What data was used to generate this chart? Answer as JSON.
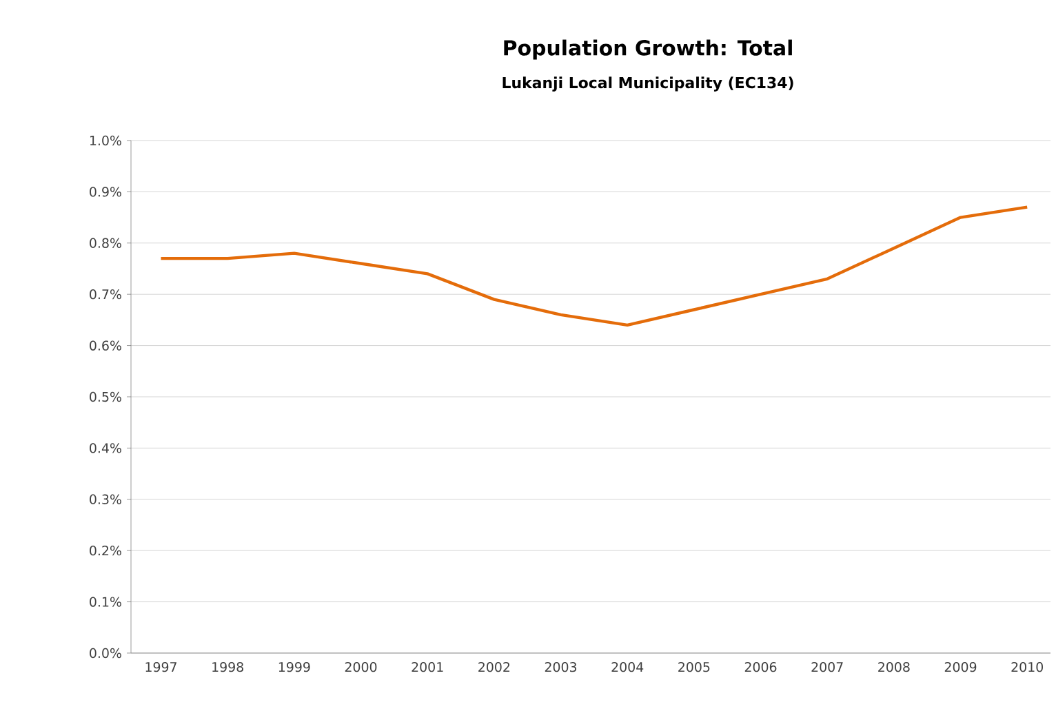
{
  "chart_data": {
    "type": "line",
    "title": "Population Growth: Total",
    "subtitle": "Lukanji Local Municipality (EC134)",
    "categories": [
      "1997",
      "1998",
      "1999",
      "2000",
      "2001",
      "2002",
      "2003",
      "2004",
      "2005",
      "2006",
      "2007",
      "2008",
      "2009",
      "2010"
    ],
    "series": [
      {
        "color": "#e46c0a",
        "values": [
          0.77,
          0.77,
          0.78,
          0.76,
          0.74,
          0.69,
          0.66,
          0.64,
          0.67,
          0.7,
          0.73,
          0.79,
          0.85,
          0.87
        ]
      }
    ],
    "ylim": [
      0,
      1.0
    ],
    "yticks": [
      {
        "value": 0,
        "label": "0.0%"
      },
      {
        "value": 0.1,
        "label": "0.1%"
      },
      {
        "value": 0.2,
        "label": "0.2%"
      },
      {
        "value": 0.3,
        "label": "0.3%"
      },
      {
        "value": 0.4,
        "label": "0.4%"
      },
      {
        "value": 0.5,
        "label": "0.5%"
      },
      {
        "value": 0.6,
        "label": "0.6%"
      },
      {
        "value": 0.7,
        "label": "0.7%"
      },
      {
        "value": 0.8,
        "label": "0.8%"
      },
      {
        "value": 0.9,
        "label": "0.9%"
      },
      {
        "value": 1.0,
        "label": "1.0%"
      }
    ],
    "grid": "y",
    "legend": false,
    "marker": "none",
    "line_style": "solid"
  }
}
